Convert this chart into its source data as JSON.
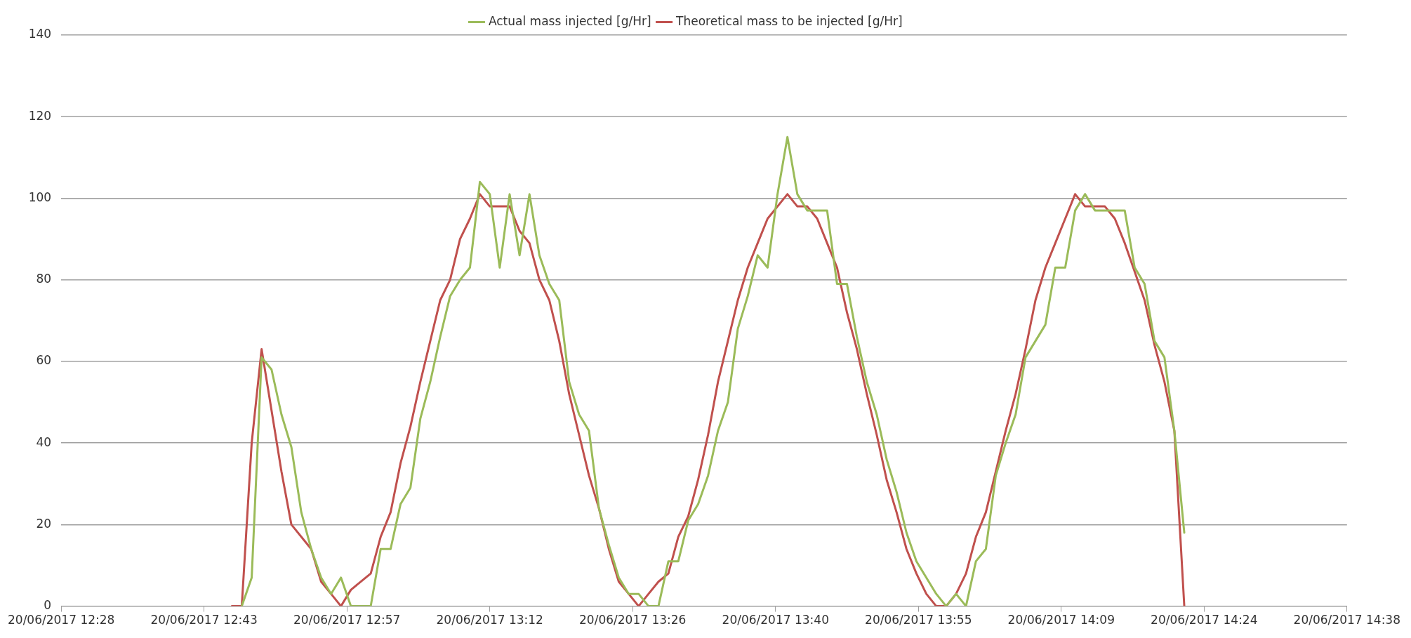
{
  "chart_data": {
    "type": "line",
    "legend": "top",
    "grid": "y",
    "marker": "none",
    "line_style": "solid",
    "xlim": [
      "2017-06-20T12:28:48",
      "2017-06-20T14:38:24"
    ],
    "ylim": [
      0,
      140
    ],
    "yticks": [
      0,
      20,
      40,
      60,
      80,
      100,
      120,
      140
    ],
    "xticks": [
      {
        "value": "2017-06-20T12:28:48",
        "label": "20/06/2017 12:28"
      },
      {
        "value": "2017-06-20T12:43:12",
        "label": "20/06/2017 12:43"
      },
      {
        "value": "2017-06-20T12:57:36",
        "label": "20/06/2017 12:57"
      },
      {
        "value": "2017-06-20T13:12:00",
        "label": "20/06/2017 13:12"
      },
      {
        "value": "2017-06-20T13:26:24",
        "label": "20/06/2017 13:26"
      },
      {
        "value": "2017-06-20T13:40:48",
        "label": "20/06/2017 13:40"
      },
      {
        "value": "2017-06-20T13:55:12",
        "label": "20/06/2017 13:55"
      },
      {
        "value": "2017-06-20T14:09:36",
        "label": "20/06/2017 14:09"
      },
      {
        "value": "2017-06-20T14:24:00",
        "label": "20/06/2017 14:24"
      },
      {
        "value": "2017-06-20T14:38:24",
        "label": "20/06/2017 14:38"
      }
    ],
    "series": [
      {
        "name": "Actual mass injected [g/Hr]",
        "color": "#9bbb59",
        "x": [
          "2017-06-20T12:47",
          "2017-06-20T12:48",
          "2017-06-20T12:49",
          "2017-06-20T12:50",
          "2017-06-20T12:51",
          "2017-06-20T12:52",
          "2017-06-20T12:53",
          "2017-06-20T12:54",
          "2017-06-20T12:55",
          "2017-06-20T12:56",
          "2017-06-20T12:57",
          "2017-06-20T12:58",
          "2017-06-20T12:59",
          "2017-06-20T13:00",
          "2017-06-20T13:01",
          "2017-06-20T13:02",
          "2017-06-20T13:03",
          "2017-06-20T13:04",
          "2017-06-20T13:05",
          "2017-06-20T13:06",
          "2017-06-20T13:07",
          "2017-06-20T13:08",
          "2017-06-20T13:09",
          "2017-06-20T13:10",
          "2017-06-20T13:11",
          "2017-06-20T13:12",
          "2017-06-20T13:13",
          "2017-06-20T13:14",
          "2017-06-20T13:15",
          "2017-06-20T13:16",
          "2017-06-20T13:17",
          "2017-06-20T13:18",
          "2017-06-20T13:19",
          "2017-06-20T13:20",
          "2017-06-20T13:21",
          "2017-06-20T13:22",
          "2017-06-20T13:23",
          "2017-06-20T13:24",
          "2017-06-20T13:25",
          "2017-06-20T13:26",
          "2017-06-20T13:27",
          "2017-06-20T13:28",
          "2017-06-20T13:29",
          "2017-06-20T13:30",
          "2017-06-20T13:31",
          "2017-06-20T13:32",
          "2017-06-20T13:33",
          "2017-06-20T13:34",
          "2017-06-20T13:35",
          "2017-06-20T13:36",
          "2017-06-20T13:37",
          "2017-06-20T13:38",
          "2017-06-20T13:39",
          "2017-06-20T13:40",
          "2017-06-20T13:41",
          "2017-06-20T13:42",
          "2017-06-20T13:43",
          "2017-06-20T13:44",
          "2017-06-20T13:45",
          "2017-06-20T13:46",
          "2017-06-20T13:47",
          "2017-06-20T13:48",
          "2017-06-20T13:49",
          "2017-06-20T13:50",
          "2017-06-20T13:51",
          "2017-06-20T13:52",
          "2017-06-20T13:53",
          "2017-06-20T13:54",
          "2017-06-20T13:55",
          "2017-06-20T13:56",
          "2017-06-20T13:57",
          "2017-06-20T13:58",
          "2017-06-20T13:59",
          "2017-06-20T14:00",
          "2017-06-20T14:01",
          "2017-06-20T14:02",
          "2017-06-20T14:03",
          "2017-06-20T14:04",
          "2017-06-20T14:05",
          "2017-06-20T14:06",
          "2017-06-20T14:07",
          "2017-06-20T14:08",
          "2017-06-20T14:09",
          "2017-06-20T14:10",
          "2017-06-20T14:11",
          "2017-06-20T14:12",
          "2017-06-20T14:13",
          "2017-06-20T14:14",
          "2017-06-20T14:15",
          "2017-06-20T14:16",
          "2017-06-20T14:17",
          "2017-06-20T14:18",
          "2017-06-20T14:19",
          "2017-06-20T14:20",
          "2017-06-20T14:21",
          "2017-06-20T14:22"
        ],
        "values": [
          0,
          7,
          61,
          58,
          47,
          39,
          23,
          14,
          7,
          3,
          7,
          0,
          0,
          0,
          14,
          14,
          25,
          29,
          46,
          55,
          66,
          76,
          80,
          83,
          104,
          101,
          83,
          101,
          86,
          101,
          86,
          79,
          75,
          55,
          47,
          43,
          24,
          15,
          7,
          3,
          3,
          0,
          0,
          11,
          11,
          21,
          25,
          32,
          43,
          50,
          68,
          76,
          86,
          83,
          101,
          115,
          101,
          97,
          97,
          97,
          79,
          79,
          66,
          55,
          47,
          36,
          28,
          18,
          11,
          7,
          3,
          0,
          3,
          0,
          11,
          14,
          32,
          40,
          47,
          61,
          65,
          69,
          83,
          83,
          97,
          101,
          97,
          97,
          97,
          97,
          83,
          79,
          65,
          61,
          43,
          18
        ]
      },
      {
        "name": "Theoretical mass to be injected [g/Hr]",
        "color": "#c0504d",
        "x": [
          "2017-06-20T12:46",
          "2017-06-20T12:47",
          "2017-06-20T12:48",
          "2017-06-20T12:49",
          "2017-06-20T12:50",
          "2017-06-20T12:51",
          "2017-06-20T12:52",
          "2017-06-20T12:54",
          "2017-06-20T12:55",
          "2017-06-20T12:56",
          "2017-06-20T12:57",
          "2017-06-20T12:58",
          "2017-06-20T13:00",
          "2017-06-20T13:01",
          "2017-06-20T13:02",
          "2017-06-20T13:03",
          "2017-06-20T13:04",
          "2017-06-20T13:05",
          "2017-06-20T13:06",
          "2017-06-20T13:07",
          "2017-06-20T13:08",
          "2017-06-20T13:09",
          "2017-06-20T13:10",
          "2017-06-20T13:11",
          "2017-06-20T13:12",
          "2017-06-20T13:14",
          "2017-06-20T13:15",
          "2017-06-20T13:16",
          "2017-06-20T13:17",
          "2017-06-20T13:18",
          "2017-06-20T13:19",
          "2017-06-20T13:20",
          "2017-06-20T13:21",
          "2017-06-20T13:22",
          "2017-06-20T13:23",
          "2017-06-20T13:24",
          "2017-06-20T13:25",
          "2017-06-20T13:26",
          "2017-06-20T13:27",
          "2017-06-20T13:28",
          "2017-06-20T13:29",
          "2017-06-20T13:30",
          "2017-06-20T13:31",
          "2017-06-20T13:32",
          "2017-06-20T13:33",
          "2017-06-20T13:34",
          "2017-06-20T13:35",
          "2017-06-20T13:36",
          "2017-06-20T13:37",
          "2017-06-20T13:38",
          "2017-06-20T13:39",
          "2017-06-20T13:40",
          "2017-06-20T13:41",
          "2017-06-20T13:42",
          "2017-06-20T13:43",
          "2017-06-20T13:44",
          "2017-06-20T13:45",
          "2017-06-20T13:46",
          "2017-06-20T13:47",
          "2017-06-20T13:48",
          "2017-06-20T13:49",
          "2017-06-20T13:50",
          "2017-06-20T13:51",
          "2017-06-20T13:52",
          "2017-06-20T13:53",
          "2017-06-20T13:54",
          "2017-06-20T13:55",
          "2017-06-20T13:56",
          "2017-06-20T13:57",
          "2017-06-20T13:58",
          "2017-06-20T13:59",
          "2017-06-20T14:00",
          "2017-06-20T14:01",
          "2017-06-20T14:02",
          "2017-06-20T14:03",
          "2017-06-20T14:04",
          "2017-06-20T14:05",
          "2017-06-20T14:06",
          "2017-06-20T14:07",
          "2017-06-20T14:08",
          "2017-06-20T14:09",
          "2017-06-20T14:10",
          "2017-06-20T14:11",
          "2017-06-20T14:12",
          "2017-06-20T14:13",
          "2017-06-20T14:14",
          "2017-06-20T14:15",
          "2017-06-20T14:16",
          "2017-06-20T14:17",
          "2017-06-20T14:18",
          "2017-06-20T14:19",
          "2017-06-20T14:20",
          "2017-06-20T14:21",
          "2017-06-20T14:22"
        ],
        "values": [
          0,
          0,
          40,
          63,
          48,
          33,
          20,
          14,
          6,
          3,
          0,
          4,
          8,
          17,
          23,
          35,
          44,
          55,
          65,
          75,
          80,
          90,
          95,
          101,
          98,
          98,
          92,
          89,
          80,
          75,
          65,
          52,
          42,
          32,
          24,
          14,
          6,
          3,
          0,
          3,
          6,
          8,
          17,
          22,
          31,
          42,
          55,
          65,
          75,
          83,
          89,
          95,
          98,
          101,
          98,
          98,
          95,
          89,
          83,
          72,
          63,
          52,
          42,
          31,
          23,
          14,
          8,
          3,
          0,
          0,
          3,
          8,
          17,
          23,
          33,
          43,
          52,
          63,
          75,
          83,
          89,
          95,
          101,
          98,
          98,
          98,
          95,
          89,
          82,
          75,
          64,
          55,
          43,
          0
        ]
      }
    ]
  }
}
